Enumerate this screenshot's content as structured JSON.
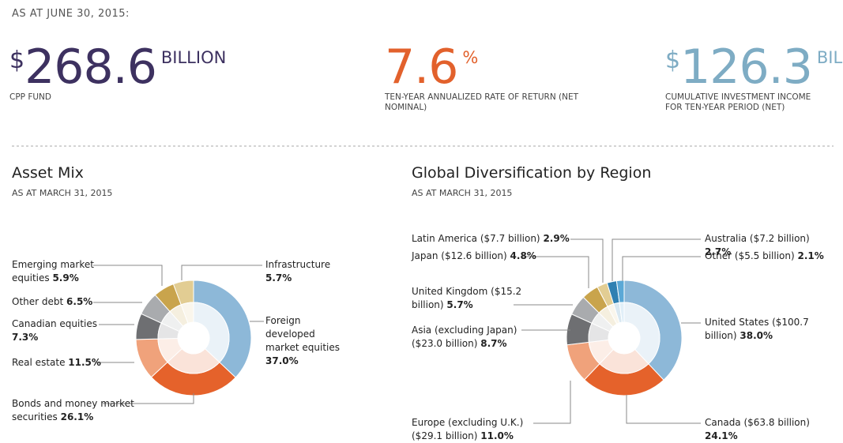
{
  "header": {
    "date": "AS AT JUNE 30, 2015:",
    "kpis": [
      {
        "currency": "$",
        "value": "268.6",
        "unit": "BILLION",
        "label": "CPP FUND",
        "color": "#3d3160"
      },
      {
        "value": "7.6",
        "unit": "%",
        "label": "TEN-YEAR ANNUALIZED RATE OF RETURN (NET NOMINAL)",
        "color": "#e2612c"
      },
      {
        "currency": "$",
        "value": "126.3",
        "unit": "BILLION",
        "label": "CUMULATIVE INVESTMENT INCOME FOR TEN-YEAR PERIOD (NET)",
        "color": "#7eacc4"
      }
    ]
  },
  "chart_data": [
    {
      "type": "pie",
      "donut": true,
      "title": "Asset Mix",
      "subtitle": "AS AT MARCH 31, 2015",
      "categories": [
        "Foreign developed market equities",
        "Bonds and money market securities",
        "Real estate",
        "Canadian equities",
        "Other debt",
        "Emerging market equities",
        "Infrastructure"
      ],
      "values": [
        37.0,
        26.1,
        11.5,
        7.3,
        6.5,
        5.9,
        5.7
      ],
      "value_labels": [
        "37.0%",
        "26.1%",
        "11.5%",
        "7.3%",
        "6.5%",
        "5.9%",
        "5.7%"
      ],
      "colors": [
        "#8db8d8",
        "#e5622b",
        "#f0a27b",
        "#6e6f72",
        "#a9abae",
        "#c9a44c",
        "#e2cd93"
      ]
    },
    {
      "type": "pie",
      "donut": true,
      "title": "Global Diversification by Region",
      "subtitle": "AS AT MARCH 31, 2015",
      "categories": [
        "United States ($100.7 billion)",
        "Canada ($63.8 billion)",
        "Europe (excluding U.K.) ($29.1 billion)",
        "Asia (excluding Japan) ($23.0 billion)",
        "United Kingdom ($15.2 billion)",
        "Japan ($12.6 billion)",
        "Latin America ($7.7 billion)",
        "Australia ($7.2 billion)",
        "Other ($5.5 billion)"
      ],
      "values": [
        38.0,
        24.1,
        11.0,
        8.7,
        5.7,
        4.8,
        2.9,
        2.7,
        2.1
      ],
      "value_labels": [
        "38.0%",
        "24.1%",
        "11.0%",
        "8.7%",
        "5.7%",
        "4.8%",
        "2.9%",
        "2.7%",
        "2.1%"
      ],
      "colors": [
        "#8db8d8",
        "#e5622b",
        "#f0a27b",
        "#6e6f72",
        "#a9abae",
        "#c9a44c",
        "#e2cd93",
        "#2f80b2",
        "#5ba8d6"
      ]
    }
  ]
}
